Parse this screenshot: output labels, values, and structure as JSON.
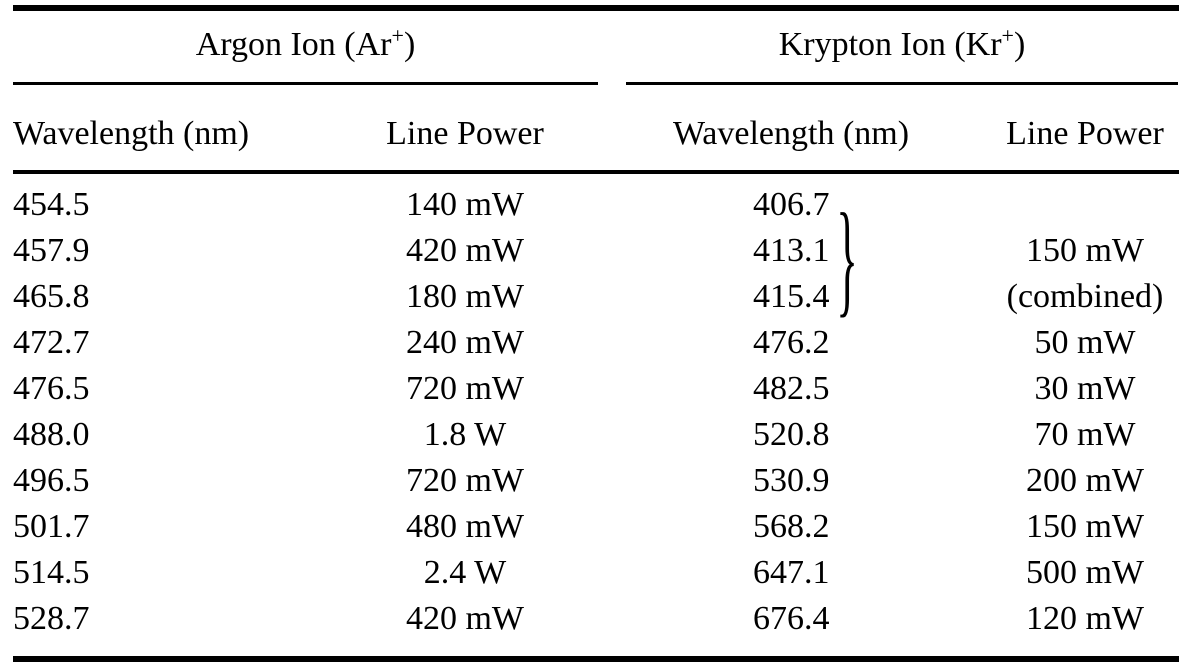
{
  "table": {
    "groups": {
      "argon": {
        "title_prefix": "Argon Ion (Ar",
        "title_sup": "+",
        "title_suffix": ")"
      },
      "krypton": {
        "title_prefix": "Krypton Ion (Kr",
        "title_sup": "+",
        "title_suffix": ")"
      }
    },
    "columns": {
      "argon_wavelength_label": "Wavelength (nm)",
      "argon_line_power_label": "Line Power",
      "krypton_wavelength_label": "Wavelength (nm)",
      "krypton_line_power_label": "Line Power"
    },
    "brace_glyph": "}",
    "rows": [
      {
        "ar_wl": "454.5",
        "ar_power": "140 mW",
        "kr_wl": "406.7",
        "kr_power": ""
      },
      {
        "ar_wl": "457.9",
        "ar_power": "420 mW",
        "kr_wl": "413.1",
        "kr_power": "150 mW"
      },
      {
        "ar_wl": "465.8",
        "ar_power": "180 mW",
        "kr_wl": "415.4",
        "kr_power": "(combined)"
      },
      {
        "ar_wl": "472.7",
        "ar_power": "240 mW",
        "kr_wl": "476.2",
        "kr_power": "50 mW"
      },
      {
        "ar_wl": "476.5",
        "ar_power": "720 mW",
        "kr_wl": "482.5",
        "kr_power": "30 mW"
      },
      {
        "ar_wl": "488.0",
        "ar_power": "1.8 W",
        "kr_wl": "520.8",
        "kr_power": "70 mW"
      },
      {
        "ar_wl": "496.5",
        "ar_power": "720 mW",
        "kr_wl": "530.9",
        "kr_power": "200 mW"
      },
      {
        "ar_wl": "501.7",
        "ar_power": "480 mW",
        "kr_wl": "568.2",
        "kr_power": "150 mW"
      },
      {
        "ar_wl": "514.5",
        "ar_power": "2.4 W",
        "kr_wl": "647.1",
        "kr_power": "500 mW"
      },
      {
        "ar_wl": "528.7",
        "ar_power": "420 mW",
        "kr_wl": "676.4",
        "kr_power": "120 mW"
      }
    ],
    "colors": {
      "text": "#000000",
      "background": "#ffffff",
      "rule": "#000000"
    }
  }
}
